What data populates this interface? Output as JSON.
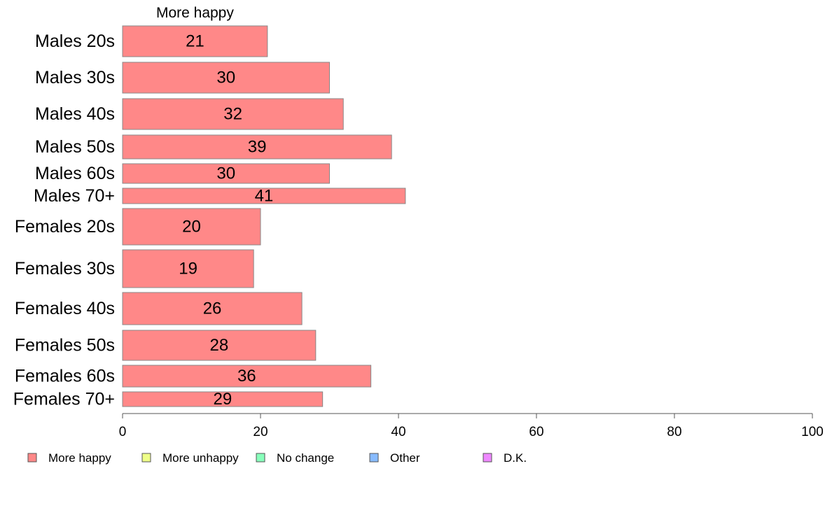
{
  "chart_data": {
    "type": "bar",
    "orientation": "horizontal",
    "stacked": true,
    "title": "",
    "series_title": "More happy",
    "categories": [
      "Males 20s",
      "Males 30s",
      "Males 40s",
      "Males 50s",
      "Males 60s",
      "Males 70+",
      "Females 20s",
      "Females 30s",
      "Females 40s",
      "Females 50s",
      "Females 60s",
      "Females 70+"
    ],
    "series": [
      {
        "name": "More happy",
        "values": [
          21,
          30,
          32,
          39,
          30,
          41,
          20,
          19,
          26,
          28,
          36,
          29
        ],
        "color": "#ff8888"
      }
    ],
    "bar_labels": [
      "21",
      "30",
      "32",
      "39",
      "30",
      "41",
      "20",
      "19",
      "26",
      "28",
      "36",
      "29"
    ],
    "xlim": [
      0,
      100
    ],
    "xticks": [
      0,
      20,
      40,
      60,
      80,
      100
    ],
    "xtick_labels": [
      "0",
      "20",
      "40",
      "60",
      "80",
      "100"
    ],
    "grid": false,
    "legend": {
      "placement": "bottom",
      "items": [
        {
          "label": "More happy",
          "color": "#ff8888"
        },
        {
          "label": "More unhappy",
          "color": "#eeff88"
        },
        {
          "label": "No change",
          "color": "#88ffbb"
        },
        {
          "label": "Other",
          "color": "#88bbff"
        },
        {
          "label": "D.K.",
          "color": "#ee88ff"
        }
      ]
    }
  }
}
